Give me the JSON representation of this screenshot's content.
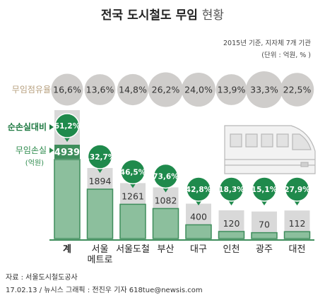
{
  "header": {
    "title_bold": "전국 도시철도 무임",
    "title_light": "현황",
    "note_line1": "2015년 기준, 지자체 7개 기관",
    "note_line2": "(단위 : 억원, % )"
  },
  "labels": {
    "share": "무임점유율",
    "ratio": "순손실대비",
    "loss": "무임손실",
    "loss_unit": "(억원)"
  },
  "chart_data": {
    "type": "bar",
    "categories": [
      "계",
      "서울 메트로",
      "서울도철",
      "부산",
      "대구",
      "인천",
      "광주",
      "대전"
    ],
    "category_lines": [
      [
        "계"
      ],
      [
        "서울",
        "메트로"
      ],
      [
        "서울도철"
      ],
      [
        "부산"
      ],
      [
        "대구"
      ],
      [
        "인천"
      ],
      [
        "광주"
      ],
      [
        "대전"
      ]
    ],
    "share_labels": [
      "16,6%",
      "13,6%",
      "14,8%",
      "26,2%",
      "24,0%",
      "13,9%",
      "33,3%",
      "22,5%"
    ],
    "share_values": [
      16.6,
      13.6,
      14.8,
      26.2,
      24.0,
      13.9,
      33.3,
      22.5
    ],
    "ratio_labels": [
      "61,2%",
      "132,7%",
      "46,5%",
      "73,6%",
      "42,8%",
      "18,3%",
      "15,1%",
      "27,9%"
    ],
    "ratio_values": [
      61.2,
      132.7,
      46.5,
      73.6,
      42.8,
      18.3,
      15.1,
      27.9
    ],
    "loss_labels": [
      "4939",
      "1894",
      "1261",
      "1082",
      "400",
      "120",
      "70",
      "112"
    ],
    "loss_values": [
      4939,
      1894,
      1261,
      1082,
      400,
      120,
      70,
      112
    ],
    "ylim": [
      0,
      5000
    ]
  },
  "colors": {
    "bubble": "#cfcdcb",
    "badge": "#1f8a4c",
    "bar_fill": "#8cbf9d",
    "bar_border": "#3f8d5c",
    "bar_back": "#d9d9d9",
    "share_label": "#b7a07f",
    "ratio_label": "#1f7a43",
    "loss_label": "#2e8b4d"
  },
  "footer": {
    "source": "자료 : 서울도시철도공사",
    "credit": "17.02.13 / 뉴시스 그래픽 : 전진우 기자 618tue@newsis.com"
  }
}
